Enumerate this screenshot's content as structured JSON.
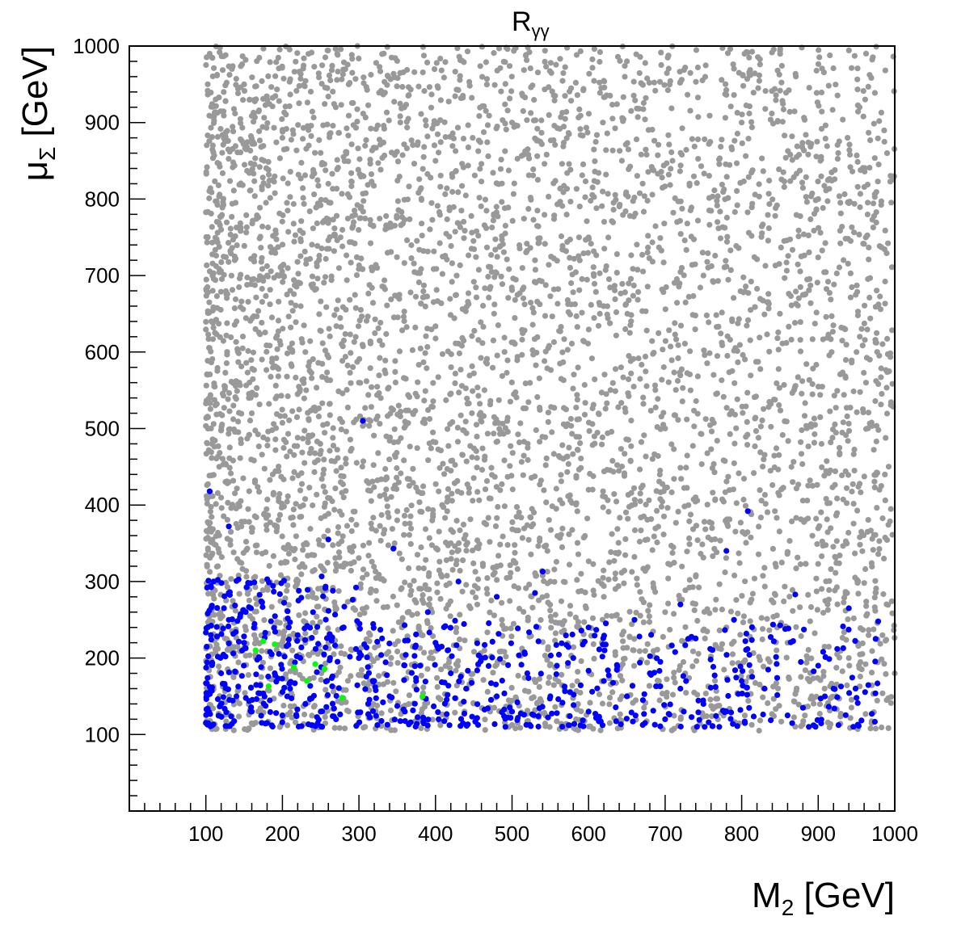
{
  "chart_data": {
    "type": "scatter",
    "title": "R",
    "title_subscript": "γγ",
    "xlabel_main": "M",
    "xlabel_sub": "2",
    "xlabel_unit": " [GeV]",
    "ylabel_main": "μ",
    "ylabel_sub": "Σ",
    "ylabel_unit": " [GeV]",
    "xlim": [
      0,
      1000
    ],
    "ylim": [
      0,
      1000
    ],
    "x_ticks": [
      "100",
      "200",
      "300",
      "400",
      "500",
      "600",
      "700",
      "800",
      "900",
      "1000"
    ],
    "y_ticks": [
      "100",
      "200",
      "300",
      "400",
      "500",
      "600",
      "700",
      "800",
      "900",
      "1000"
    ],
    "grid": false,
    "legend": "none",
    "series": [
      {
        "color": "#999999",
        "region": {
          "x": [
            100,
            1000
          ],
          "y": [
            105,
            1000
          ]
        },
        "points": [
          [
            105,
            990
          ],
          [
            150,
            950
          ],
          [
            200,
            880
          ],
          [
            260,
            820
          ],
          [
            120,
            760
          ],
          [
            180,
            700
          ],
          [
            140,
            640
          ],
          [
            230,
            600
          ],
          [
            300,
            560
          ],
          [
            160,
            520
          ],
          [
            210,
            470
          ],
          [
            130,
            430
          ],
          [
            280,
            410
          ],
          [
            350,
            380
          ],
          [
            420,
            350
          ],
          [
            480,
            320
          ],
          [
            550,
            300
          ],
          [
            620,
            280
          ],
          [
            700,
            260
          ],
          [
            780,
            240
          ],
          [
            860,
            220
          ],
          [
            940,
            200
          ],
          [
            1000,
            180
          ],
          [
            650,
            980
          ],
          [
            500,
            900
          ],
          [
            400,
            850
          ],
          [
            600,
            750
          ],
          [
            750,
            700
          ],
          [
            850,
            650
          ],
          [
            950,
            600
          ],
          [
            900,
            800
          ],
          [
            800,
            900
          ],
          [
            700,
            500
          ],
          [
            600,
            420
          ],
          [
            980,
            420
          ],
          [
            990,
            860
          ]
        ]
      },
      {
        "color": "#0000ff",
        "points": [
          [
            105,
            418
          ],
          [
            130,
            372
          ],
          [
            305,
            510
          ],
          [
            260,
            355
          ],
          [
            345,
            343
          ],
          [
            540,
            313
          ],
          [
            780,
            340
          ],
          [
            808,
            392
          ],
          [
            870,
            283
          ],
          [
            940,
            265
          ],
          [
            975,
            225
          ],
          [
            110,
            300
          ],
          [
            130,
            250
          ],
          [
            150,
            220
          ],
          [
            170,
            200
          ],
          [
            190,
            180
          ],
          [
            210,
            160
          ],
          [
            230,
            140
          ],
          [
            250,
            130
          ],
          [
            270,
            120
          ],
          [
            120,
            180
          ],
          [
            140,
            150
          ],
          [
            160,
            130
          ],
          [
            180,
            115
          ],
          [
            200,
            125
          ],
          [
            220,
            230
          ],
          [
            240,
            260
          ],
          [
            280,
            240
          ],
          [
            300,
            200
          ],
          [
            320,
            170
          ],
          [
            340,
            150
          ],
          [
            360,
            130
          ],
          [
            380,
            190
          ],
          [
            400,
            220
          ],
          [
            420,
            180
          ],
          [
            440,
            160
          ],
          [
            460,
            200
          ],
          [
            480,
            150
          ],
          [
            500,
            130
          ],
          [
            520,
            180
          ],
          [
            550,
            150
          ],
          [
            580,
            200
          ],
          [
            600,
            130
          ],
          [
            620,
            170
          ],
          [
            650,
            150
          ],
          [
            680,
            180
          ],
          [
            700,
            120
          ],
          [
            720,
            160
          ],
          [
            750,
            140
          ],
          [
            780,
            130
          ],
          [
            800,
            170
          ],
          [
            830,
            160
          ],
          [
            860,
            125
          ],
          [
            880,
            135
          ],
          [
            900,
            190
          ],
          [
            920,
            160
          ],
          [
            950,
            148
          ],
          [
            970,
            127
          ],
          [
            530,
            285
          ],
          [
            480,
            280
          ],
          [
            430,
            300
          ],
          [
            390,
            260
          ],
          [
            600,
            240
          ],
          [
            660,
            250
          ],
          [
            720,
            270
          ],
          [
            790,
            250
          ]
        ]
      },
      {
        "color": "#00ff00",
        "points": [
          [
            165,
            210
          ],
          [
            175,
            222
          ],
          [
            190,
            218
          ],
          [
            182,
            163
          ],
          [
            215,
            188
          ],
          [
            232,
            170
          ],
          [
            243,
            192
          ],
          [
            255,
            186
          ],
          [
            278,
            148
          ],
          [
            383,
            150
          ]
        ]
      }
    ]
  }
}
